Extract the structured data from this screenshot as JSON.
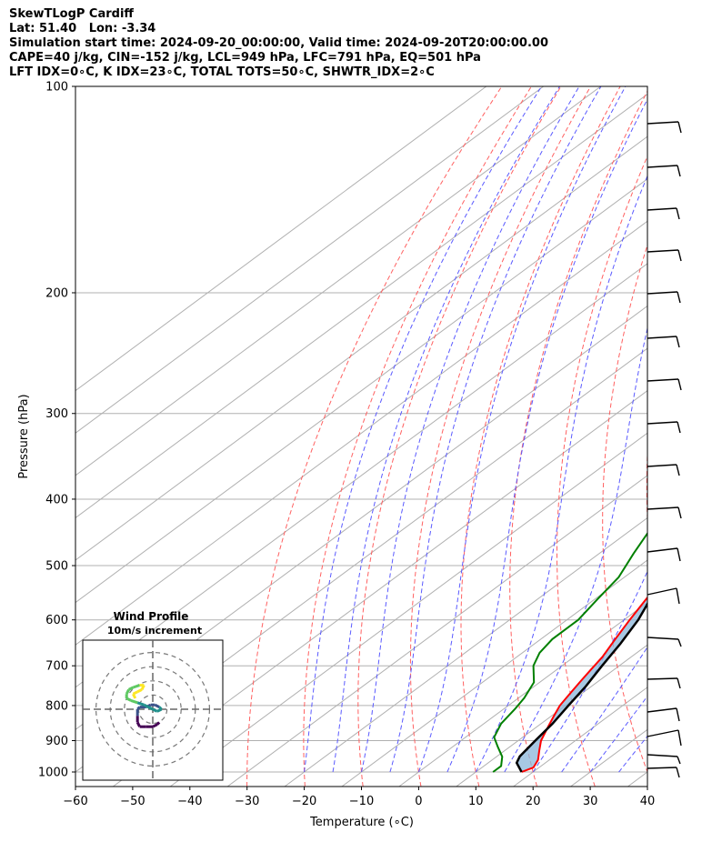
{
  "title_lines": [
    "SkewTLogP Cardiff",
    "Lat: 51.40   Lon: -3.34",
    "Simulation start time: 2024-09-20_00:00:00, Valid time: 2024-09-20T20:00:00.00",
    "CAPE=40 j/kg, CIN=-152 j/kg, LCL=949 hPa, LFC=791 hPa, EQ=501 hPa",
    "LFT IDX=0∘C, K IDX=23∘C, TOTAL TOTS=50∘C, SHWTR_IDX=2∘C"
  ],
  "chart_data": {
    "type": "line",
    "title": "SkewTLogP Cardiff",
    "xlabel": "Temperature (∘C)",
    "ylabel": "Pressure (hPa)",
    "xlim": [
      -60,
      40
    ],
    "ylim": [
      1050,
      100
    ],
    "y_scale": "log",
    "x_ticks": [
      -60,
      -50,
      -40,
      -30,
      -20,
      -10,
      0,
      10,
      20,
      30,
      40
    ],
    "y_ticks": [
      1000,
      900,
      800,
      700,
      600,
      500,
      400,
      300,
      200,
      100
    ],
    "grid": true,
    "series": [
      {
        "key": "temperature",
        "color": "#ff0000",
        "points": [
          [
            18,
            1000
          ],
          [
            19,
            985
          ],
          [
            18,
            960
          ],
          [
            16,
            930
          ],
          [
            14,
            900
          ],
          [
            12,
            860
          ],
          [
            10.5,
            830
          ],
          [
            9,
            800
          ],
          [
            8,
            770
          ],
          [
            7,
            740
          ],
          [
            6,
            710
          ],
          [
            5,
            680
          ],
          [
            3,
            640
          ],
          [
            1,
            600
          ],
          [
            -1,
            560
          ],
          [
            -3,
            520
          ],
          [
            -6,
            480
          ],
          [
            -9,
            440
          ],
          [
            -12,
            400
          ],
          [
            -16,
            360
          ],
          [
            -20,
            330
          ],
          [
            -23,
            300
          ],
          [
            -28,
            280
          ],
          [
            -32,
            260
          ],
          [
            -37,
            240
          ],
          [
            -40,
            225
          ],
          [
            -44,
            210
          ],
          [
            -48,
            200
          ],
          [
            -51,
            190
          ],
          [
            -54,
            180
          ],
          [
            -57,
            170
          ],
          [
            -59,
            160
          ],
          [
            -61,
            150
          ],
          [
            -63,
            140
          ],
          [
            -64,
            130
          ],
          [
            -64.5,
            120
          ],
          [
            -65,
            110
          ],
          [
            -65.5,
            100
          ]
        ]
      },
      {
        "key": "dewpoint",
        "color": "#008000",
        "points": [
          [
            13,
            1000
          ],
          [
            13,
            980
          ],
          [
            11,
            950
          ],
          [
            8,
            920
          ],
          [
            5,
            890
          ],
          [
            3,
            850
          ],
          [
            2,
            810
          ],
          [
            1,
            780
          ],
          [
            -1,
            740
          ],
          [
            -5,
            700
          ],
          [
            -7,
            670
          ],
          [
            -8,
            640
          ],
          [
            -8,
            600
          ],
          [
            -9.5,
            560
          ],
          [
            -11,
            520
          ],
          [
            -14,
            480
          ],
          [
            -17,
            440
          ],
          [
            -20,
            400
          ],
          [
            -22,
            370
          ],
          [
            -22,
            340
          ],
          [
            -24,
            310
          ],
          [
            -29,
            290
          ],
          [
            -33,
            270
          ],
          [
            -36,
            250
          ],
          [
            -38,
            230
          ],
          [
            -40,
            210
          ],
          [
            -43,
            200
          ],
          [
            -49,
            190
          ],
          [
            -54,
            180
          ],
          [
            -59,
            170
          ],
          [
            -62,
            160
          ],
          [
            -65,
            150
          ],
          [
            -72,
            140
          ],
          [
            -76,
            125
          ],
          [
            -81,
            110
          ],
          [
            -85,
            100
          ]
        ]
      },
      {
        "key": "parcel",
        "color": "#000000",
        "points": [
          [
            18,
            1000
          ],
          [
            15,
            970
          ],
          [
            14,
            949
          ],
          [
            13,
            900
          ],
          [
            12,
            850
          ],
          [
            10.5,
            800
          ],
          [
            9,
            750
          ],
          [
            7,
            700
          ],
          [
            5,
            650
          ],
          [
            2.5,
            600
          ],
          [
            -1,
            550
          ],
          [
            -5,
            501
          ],
          [
            -9,
            460
          ],
          [
            -14,
            420
          ],
          [
            -18.5,
            390
          ],
          [
            -25,
            350
          ],
          [
            -33,
            310
          ],
          [
            -40,
            280
          ],
          [
            -48,
            250
          ],
          [
            -57,
            220
          ],
          [
            -66,
            195
          ],
          [
            -76,
            170
          ],
          [
            -86,
            150
          ],
          [
            -96,
            130
          ],
          [
            -105,
            115
          ],
          [
            -113,
            100
          ]
        ]
      }
    ],
    "wind_profile": {
      "title": "Wind Profile",
      "subtitle": "10m/s increment",
      "rings_ms": [
        10,
        20,
        30,
        40
      ],
      "hodograph": [
        [
          3,
          -6
        ],
        [
          2,
          -7
        ],
        [
          0,
          -8
        ],
        [
          -3,
          -8
        ],
        [
          -6,
          -8
        ],
        [
          -7,
          -6
        ],
        [
          -7,
          -3
        ],
        [
          -7,
          0
        ],
        [
          -6,
          1
        ],
        [
          -3,
          1
        ],
        [
          -1,
          2
        ],
        [
          1,
          2
        ],
        [
          3,
          1
        ],
        [
          4,
          0
        ],
        [
          2,
          -1
        ],
        [
          0,
          0
        ],
        [
          -2,
          1
        ],
        [
          -4,
          2
        ],
        [
          -7,
          3
        ],
        [
          -10,
          4
        ],
        [
          -12,
          5
        ],
        [
          -12,
          7
        ],
        [
          -11,
          9
        ],
        [
          -9,
          10
        ],
        [
          -6,
          11
        ],
        [
          -4,
          11
        ],
        [
          -5,
          9
        ],
        [
          -7,
          8
        ],
        [
          -9,
          7
        ],
        [
          -8,
          5
        ]
      ]
    }
  }
}
